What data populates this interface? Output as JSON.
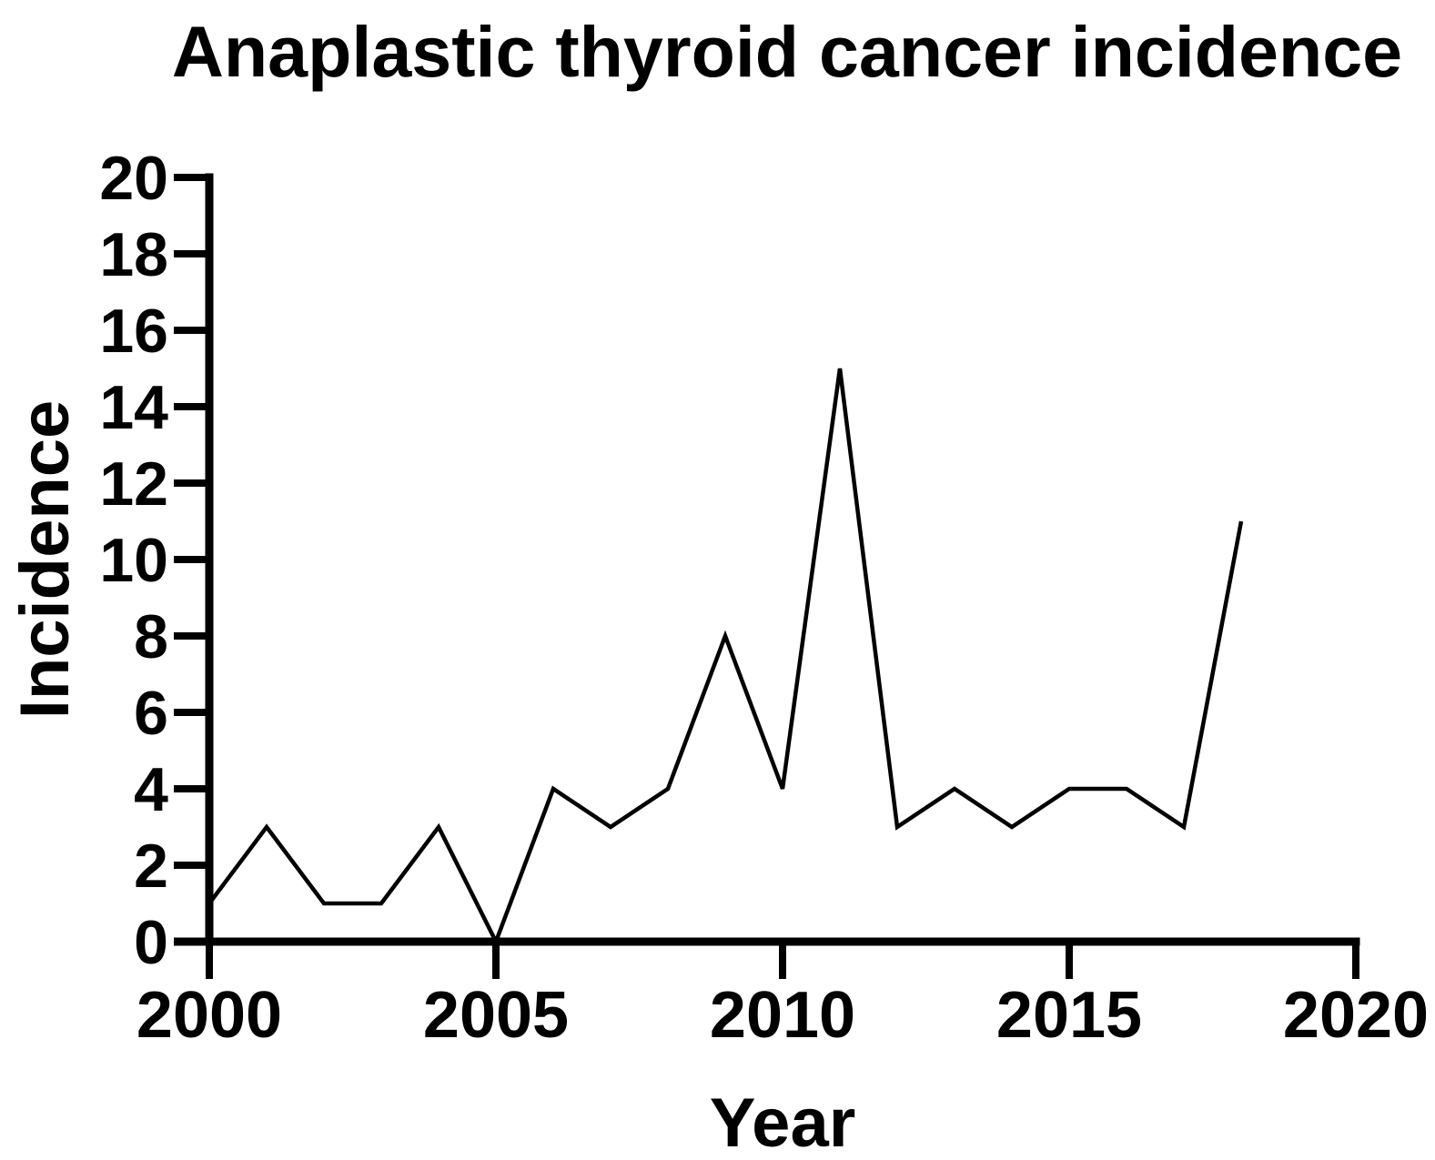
{
  "chart_data": {
    "type": "line",
    "title": "Anaplastic thyroid cancer incidence",
    "xlabel": "Year",
    "ylabel": "Incidence",
    "x": [
      2000,
      2001,
      2002,
      2003,
      2004,
      2005,
      2006,
      2007,
      2008,
      2009,
      2010,
      2011,
      2012,
      2013,
      2014,
      2015,
      2016,
      2017,
      2018
    ],
    "values": [
      1,
      3,
      1,
      1,
      3,
      0,
      4,
      3,
      4,
      8,
      4,
      15,
      3,
      4,
      3,
      4,
      4,
      3,
      11
    ],
    "xlim": [
      2000,
      2020
    ],
    "ylim": [
      0,
      20
    ],
    "x_ticks": [
      2000,
      2005,
      2010,
      2015,
      2020
    ],
    "y_ticks": [
      0,
      2,
      4,
      6,
      8,
      10,
      12,
      14,
      16,
      18,
      20
    ],
    "grid": false,
    "legend": "none",
    "line_color": "#000000",
    "axis_color": "#000000",
    "background_color": "#ffffff"
  }
}
